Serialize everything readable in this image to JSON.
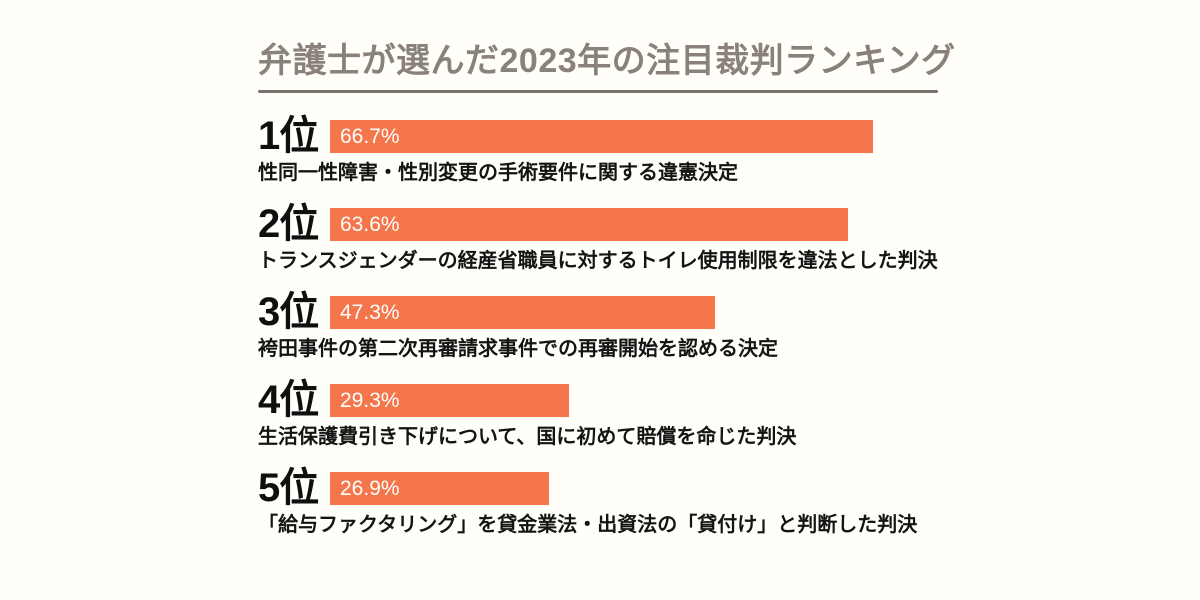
{
  "page": {
    "background_color": "#FFFEF9",
    "title_color": "#8A817A",
    "divider_color": "#79716B",
    "text_color": "#141414"
  },
  "chart_data": {
    "type": "bar",
    "orientation": "horizontal",
    "title": "弁護士が選んだ2023年の注目裁判ランキング",
    "categories": [
      "1位",
      "2位",
      "3位",
      "4位",
      "5位"
    ],
    "values": [
      66.7,
      63.6,
      47.3,
      29.3,
      26.9
    ],
    "value_labels": [
      "66.7%",
      "63.6%",
      "47.3%",
      "29.3%",
      "26.9%"
    ],
    "item_labels": [
      "性同一性障害・性別変更の手術要件に関する違憲決定",
      "トランスジェンダーの経産省職員に対するトイレ使用制限を違法とした判決",
      "袴田事件の第二次再審請求事件での再審開始を認める決定",
      "生活保護費引き下げについて、国に初めて賠償を命じた判決",
      "「給与ファクタリング」を貸金業法・出資法の「貸付け」と判断した判決"
    ],
    "bar_color": "#F4764A",
    "value_label_color": "#FFFFFF",
    "xlim": [
      0,
      74
    ],
    "grid": false,
    "legend": false
  }
}
